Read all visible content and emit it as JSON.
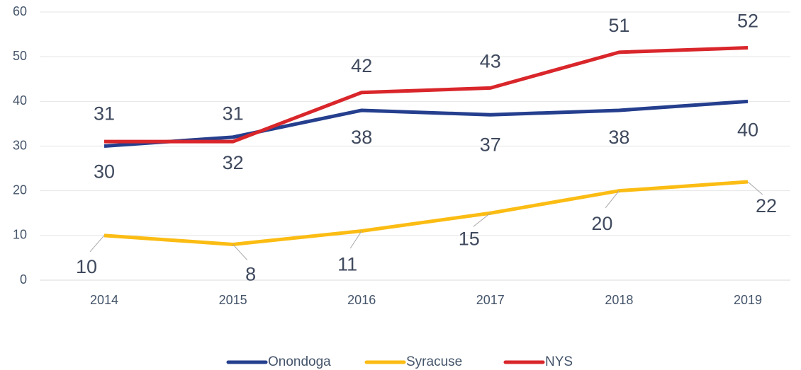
{
  "chart_data": {
    "type": "line",
    "categories": [
      "2014",
      "2015",
      "2016",
      "2017",
      "2018",
      "2019"
    ],
    "series": [
      {
        "name": "Onondoga",
        "color": "#253f8e",
        "values": [
          30,
          32,
          38,
          37,
          38,
          40
        ]
      },
      {
        "name": "Syracuse",
        "color": "#fbbc13",
        "values": [
          10,
          8,
          11,
          15,
          20,
          22
        ]
      },
      {
        "name": "NYS",
        "color": "#d9262b",
        "values": [
          31,
          31,
          42,
          43,
          51,
          52
        ]
      }
    ],
    "ylim": [
      0,
      60
    ],
    "yticks": [
      0,
      10,
      20,
      30,
      40,
      50,
      60
    ],
    "grid": true,
    "legend": "bottom"
  }
}
